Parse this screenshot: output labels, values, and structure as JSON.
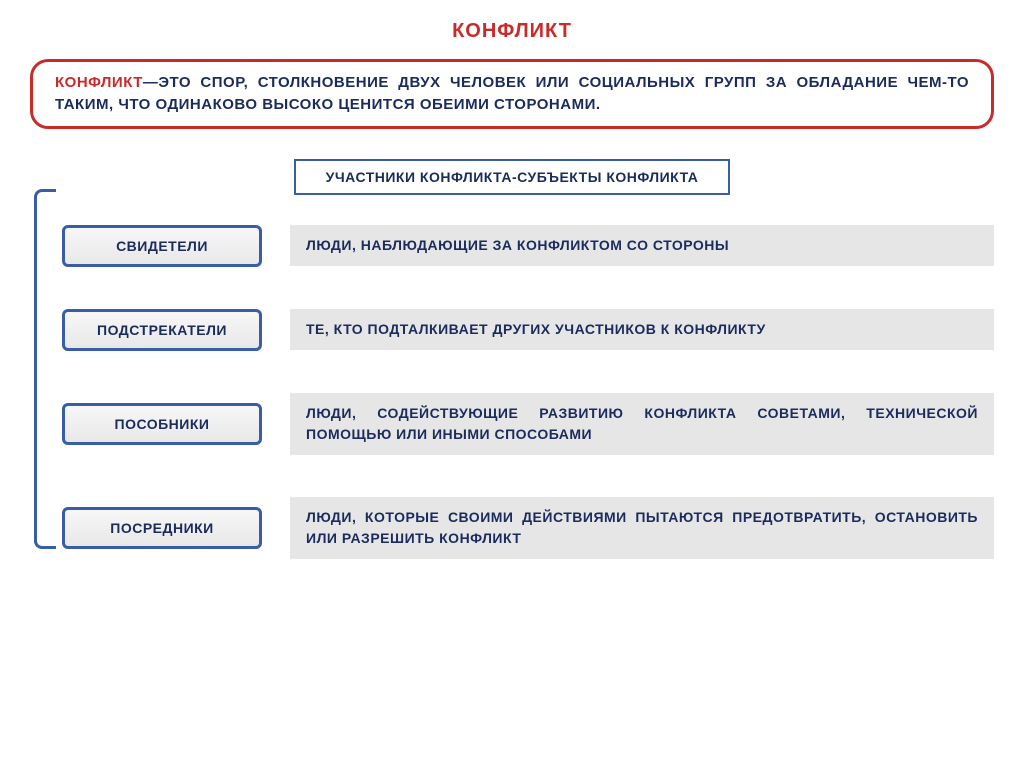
{
  "title": "КОНФЛИКТ",
  "title_color": "#c92a2a",
  "definition": {
    "term": "КОНФЛИКТ",
    "term_color": "#c92a2a",
    "body": "—ЭТО СПОР, СТОЛКНОВЕНИЕ ДВУХ ЧЕЛОВЕК ИЛИ СОЦИАЛЬНЫХ ГРУПП ЗА ОБЛАДАНИЕ ЧЕМ-ТО ТАКИМ, ЧТО ОДИНАКОВО ВЫСОКО ЦЕНИТСЯ ОБЕИМИ СТОРОНАМИ.",
    "body_color": "#1a2b5c",
    "border_color": "#c92a2a"
  },
  "subheader": {
    "text": "УЧАСТНИКИ КОНФЛИКТА-СУБЪЕКТЫ КОНФЛИКТА",
    "color": "#1a2b5c",
    "border_color": "#3a5da8"
  },
  "bracket_color": "#3a5da8",
  "role_box_style": {
    "border_color": "#3a5da8",
    "text_color": "#1a2b5c"
  },
  "desc_box_style": {
    "bg_color": "#e6e6e6",
    "text_color": "#1a2b5c"
  },
  "roles": [
    {
      "label": "СВИДЕТЕЛИ",
      "desc": "ЛЮДИ, НАБЛЮДАЮЩИЕ ЗА КОНФЛИКТОМ СО СТОРОНЫ"
    },
    {
      "label": "ПОДСТРЕКАТЕЛИ",
      "desc": "ТЕ, КТО ПОДТАЛКИВАЕТ ДРУГИХ УЧАСТНИКОВ К КОНФЛИКТУ"
    },
    {
      "label": "ПОСОБНИКИ",
      "desc": "ЛЮДИ, СОДЕЙСТВУЮЩИЕ РАЗВИТИЮ КОНФЛИКТА СОВЕТАМИ, ТЕХНИЧЕСКОЙ ПОМОЩЬЮ ИЛИ ИНЫМИ СПОСОБАМИ"
    },
    {
      "label": "ПОСРЕДНИКИ",
      "desc": "ЛЮДИ, КОТОРЫЕ СВОИМИ ДЕЙСТВИЯМИ ПЫТАЮТСЯ ПРЕДОТВРАТИТЬ, ОСТАНОВИТЬ ИЛИ РАЗРЕШИТЬ КОНФЛИКТ"
    }
  ]
}
